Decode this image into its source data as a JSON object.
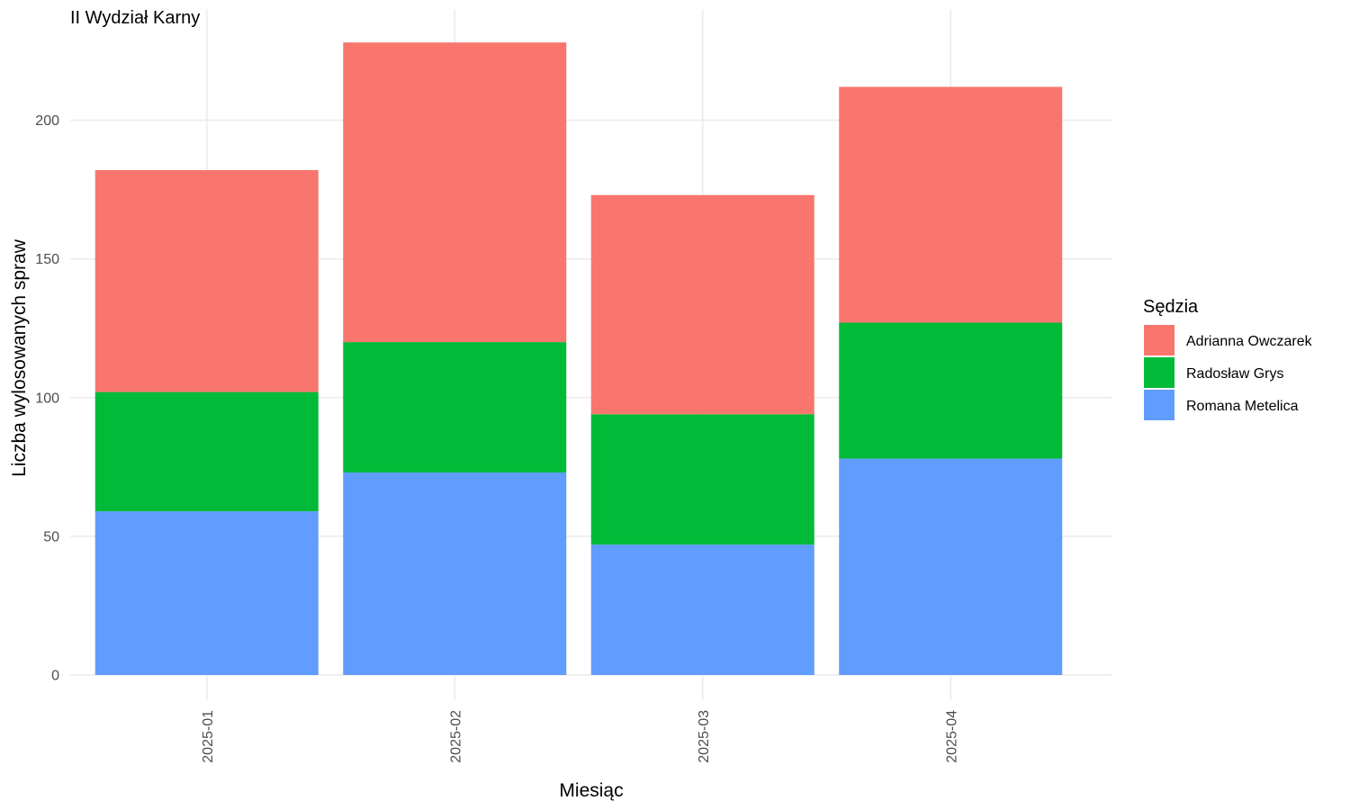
{
  "chart_data": {
    "type": "bar",
    "stacked": true,
    "title": "II Wydział Karny",
    "xlabel": "Miesiąc",
    "ylabel": "Liczba wylosowanych spraw",
    "categories": [
      "2025-01",
      "2025-02",
      "2025-03",
      "2025-04"
    ],
    "ylim": [
      0,
      235
    ],
    "yticks": [
      0,
      50,
      100,
      150,
      200
    ],
    "grid": true,
    "legend": {
      "title": "Sędzia",
      "position": "right"
    },
    "series": [
      {
        "name": "Romana Metelica",
        "color": "#619CFF",
        "values": [
          59,
          73,
          47,
          78
        ]
      },
      {
        "name": "Radosław Grys",
        "color": "#00BA38",
        "values": [
          43,
          47,
          47,
          49
        ]
      },
      {
        "name": "Adrianna Owczarek",
        "color": "#F8766D",
        "values": [
          80,
          108,
          79,
          85
        ]
      }
    ],
    "legend_order": [
      "Adrianna Owczarek",
      "Radosław Grys",
      "Romana Metelica"
    ]
  }
}
